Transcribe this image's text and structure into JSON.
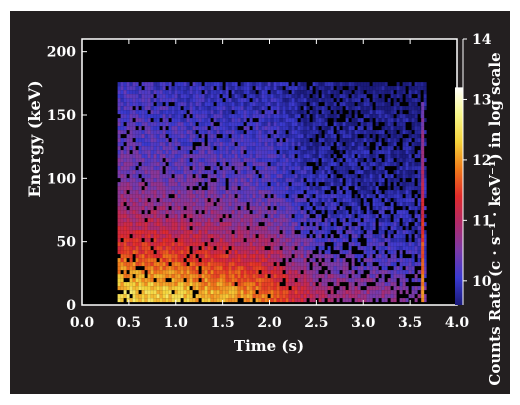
{
  "chart_data": {
    "type": "heatmap",
    "title": "",
    "xlabel": "Time (s)",
    "ylabel": "Energy (keV)",
    "colorbar_label": "Counts Rate  (c · s⁻¹ · keV⁻¹) in log scale",
    "xlim": [
      0.0,
      4.0
    ],
    "ylim": [
      0,
      210
    ],
    "x_ticks": [
      0.0,
      0.5,
      1.0,
      1.5,
      2.0,
      2.5,
      3.0,
      3.5,
      4.0
    ],
    "x_tick_labels": [
      "0.0",
      "0.5",
      "1.0",
      "1.5",
      "2.0",
      "2.5",
      "3.0",
      "3.5",
      "4.0"
    ],
    "y_ticks": [
      0,
      50,
      100,
      150,
      200
    ],
    "y_tick_labels": [
      "0",
      "50",
      "100",
      "150",
      "200"
    ],
    "colorbar_range": [
      9.6,
      14
    ],
    "colorbar_ticks": [
      10,
      11,
      12,
      13,
      14
    ],
    "colorbar_tick_labels": [
      "10",
      "11",
      "12",
      "13",
      "14"
    ],
    "colormap": [
      "#1a1a7a",
      "#3a3ad0",
      "#7a3aa8",
      "#b02a6a",
      "#e02a2a",
      "#f07a1a",
      "#f4d23a",
      "#f7f78a",
      "#ffffff"
    ],
    "data_extent": {
      "t_start": 0.38,
      "t_end": 3.65,
      "e_min": 5,
      "e_max": 176
    },
    "time_bins": [
      0.5,
      1.0,
      1.5,
      2.0,
      2.5,
      3.0,
      3.5
    ],
    "energy_bins": [
      10,
      30,
      50,
      75,
      100,
      125,
      150,
      170
    ],
    "intensity_log": [
      [
        12.4,
        12.3,
        12.1,
        11.8,
        11.0,
        10.8,
        10.6
      ],
      [
        11.9,
        11.8,
        11.6,
        11.3,
        10.6,
        10.4,
        10.3
      ],
      [
        11.4,
        11.3,
        11.1,
        10.9,
        10.3,
        10.2,
        10.1
      ],
      [
        10.9,
        10.8,
        10.7,
        10.5,
        10.1,
        10.0,
        10.0
      ],
      [
        10.6,
        10.5,
        10.4,
        10.3,
        10.0,
        9.9,
        9.9
      ],
      [
        10.4,
        10.3,
        10.3,
        10.2,
        9.9,
        9.9,
        9.8
      ],
      [
        10.3,
        10.2,
        10.1,
        10.1,
        9.8,
        9.8,
        9.8
      ],
      [
        10.2,
        10.1,
        10.0,
        10.0,
        9.8,
        9.7,
        9.7
      ]
    ],
    "grid": false,
    "legend": "colorbar-right"
  }
}
